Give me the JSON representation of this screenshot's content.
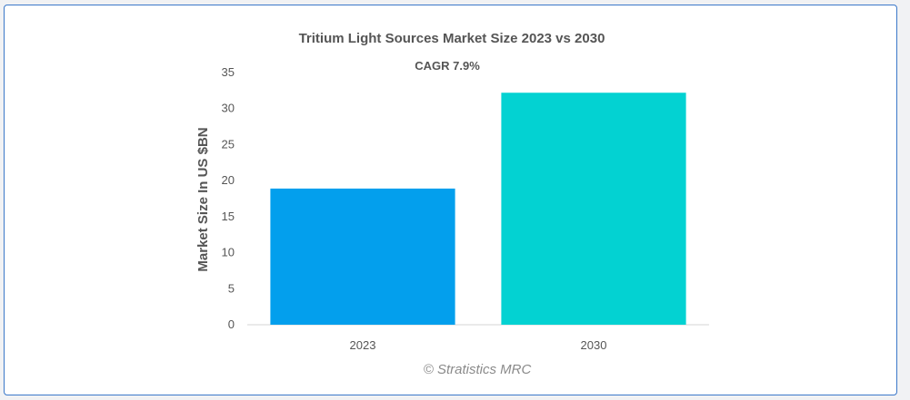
{
  "chart_data": {
    "type": "bar",
    "title": "Tritium Light Sources Market Size 2023 vs 2030",
    "subtitle": "CAGR 7.9%",
    "categories": [
      "2023",
      "2030"
    ],
    "values": [
      18.9,
      32.2
    ],
    "bar_colors": [
      "#039fed",
      "#03d2d2"
    ],
    "xlabel": "",
    "ylabel": "Market Size In US $BN",
    "ylim": [
      0,
      35
    ],
    "yticks": [
      0,
      5,
      10,
      15,
      20,
      25,
      30,
      35
    ],
    "grid": false,
    "credit": "© Stratistics MRC"
  }
}
